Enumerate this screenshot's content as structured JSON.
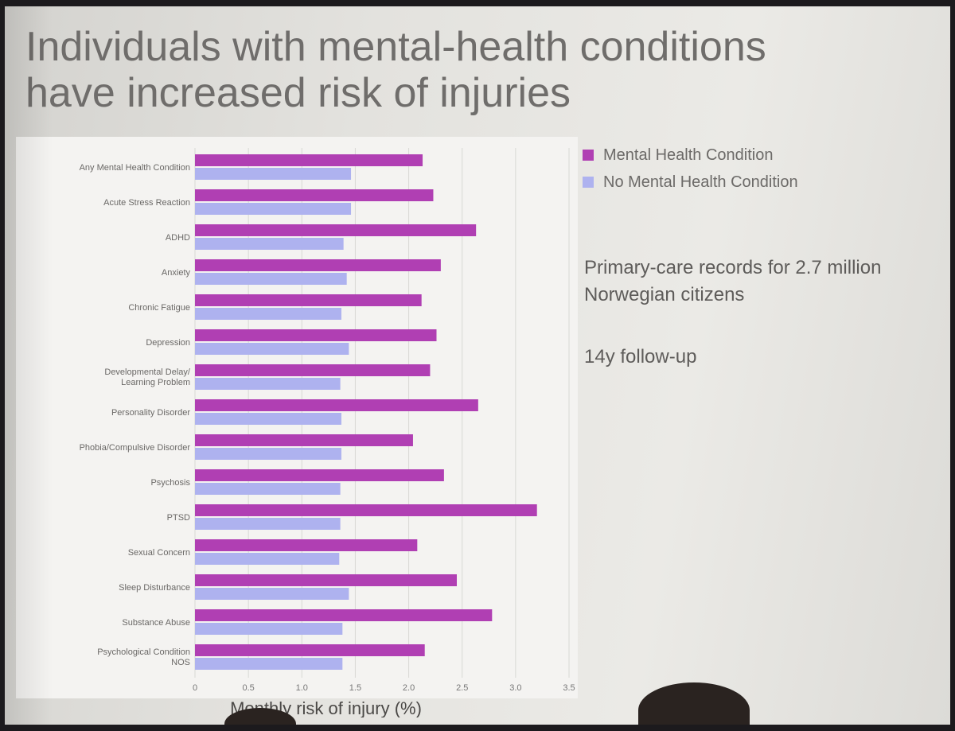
{
  "slide": {
    "title_line1": "Individuals with mental-health conditions",
    "title_line2": "have increased risk of injuries",
    "note1": "Primary-care records for 2.7 million Norwegian citizens",
    "note2": "14y follow-up"
  },
  "legend": {
    "items": [
      {
        "label": "Mental Health Condition",
        "color": "#b03fb3"
      },
      {
        "label": "No Mental Health Condition",
        "color": "#aeb2ef"
      }
    ]
  },
  "chart_data": {
    "type": "bar",
    "orientation": "horizontal",
    "categories": [
      "Any Mental Health Condition",
      "Acute Stress Reaction",
      "ADHD",
      "Anxiety",
      "Chronic Fatigue",
      "Depression",
      "Developmental Delay/ Learning Problem",
      "Personality Disorder",
      "Phobia/Compulsive Disorder",
      "Psychosis",
      "PTSD",
      "Sexual Concern",
      "Sleep Disturbance",
      "Substance Abuse",
      "Psychological Condition NOS"
    ],
    "series": [
      {
        "name": "Mental Health Condition",
        "color": "#b03fb3",
        "values": [
          2.13,
          2.23,
          2.63,
          2.3,
          2.12,
          2.26,
          2.2,
          2.65,
          2.04,
          2.33,
          3.2,
          2.08,
          2.45,
          2.78,
          2.15
        ]
      },
      {
        "name": "No Mental Health Condition",
        "color": "#aeb2ef",
        "values": [
          1.46,
          1.46,
          1.39,
          1.42,
          1.37,
          1.44,
          1.36,
          1.37,
          1.37,
          1.36,
          1.36,
          1.35,
          1.44,
          1.38,
          1.38
        ]
      }
    ],
    "xlabel": "Monthly risk of injury (%)",
    "xlim": [
      0,
      3.5
    ],
    "xticks": [
      "0",
      "0.5",
      "1.0",
      "1.5",
      "2.0",
      "2.5",
      "3.0",
      "3.5"
    ],
    "grid": true,
    "legend_position": "top-right"
  }
}
